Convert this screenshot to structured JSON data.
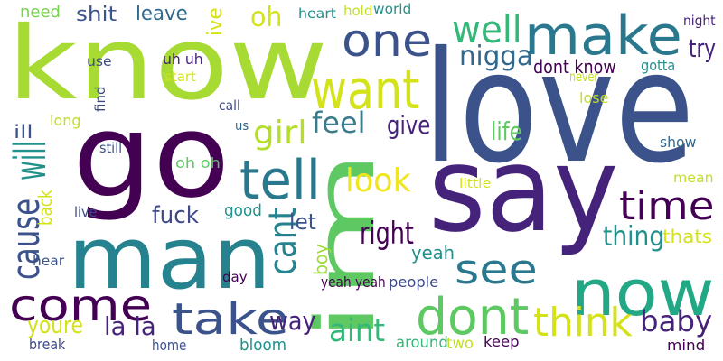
{
  "words": [
    {
      "text": "love",
      "color": "#3b528b"
    },
    {
      "text": "know",
      "color": "#a7db33"
    },
    {
      "text": "say",
      "color": "#46237a"
    },
    {
      "text": "go",
      "color": "#440154"
    },
    {
      "text": "im",
      "color": "#5ec962"
    },
    {
      "text": "man",
      "color": "#26828e"
    },
    {
      "text": "make",
      "color": "#2a788e"
    },
    {
      "text": "now",
      "color": "#22a884"
    },
    {
      "text": "one",
      "color": "#3b528b"
    },
    {
      "text": "want",
      "color": "#d4e21a"
    },
    {
      "text": "tell",
      "color": "#2a788e"
    },
    {
      "text": "dont",
      "color": "#5ec962"
    },
    {
      "text": "see",
      "color": "#2a788e"
    },
    {
      "text": "come",
      "color": "#440154"
    },
    {
      "text": "take",
      "color": "#3b528b"
    },
    {
      "text": "time",
      "color": "#440154"
    },
    {
      "text": "well",
      "color": "#35b779"
    },
    {
      "text": "think",
      "color": "#d4e21a"
    },
    {
      "text": "will",
      "color": "#21918c"
    },
    {
      "text": "cause",
      "color": "#3b528b"
    },
    {
      "text": "cant",
      "color": "#26828e"
    },
    {
      "text": "baby",
      "color": "#46237a"
    },
    {
      "text": "look",
      "color": "#f1e51d"
    },
    {
      "text": "aint",
      "color": "#35b779"
    },
    {
      "text": "girl",
      "color": "#b5de2b"
    },
    {
      "text": "feel",
      "color": "#3b7c8c"
    },
    {
      "text": "right",
      "color": "#440154"
    },
    {
      "text": "fuck",
      "color": "#3e4989"
    },
    {
      "text": "way",
      "color": "#46237a"
    },
    {
      "text": "thing",
      "color": "#21918c"
    },
    {
      "text": "nigga",
      "color": "#31688e"
    },
    {
      "text": "try",
      "color": "#46237a"
    },
    {
      "text": "give",
      "color": "#46237a"
    },
    {
      "text": "life",
      "color": "#5ec962"
    },
    {
      "text": "let",
      "color": "#3b528b"
    },
    {
      "text": "youre",
      "color": "#d4e21a"
    },
    {
      "text": "la la",
      "color": "#46237a"
    },
    {
      "text": "dont know",
      "color": "#440154"
    },
    {
      "text": "oh",
      "color": "#d4e21a"
    },
    {
      "text": "shit",
      "color": "#3b528b"
    },
    {
      "text": "leave",
      "color": "#31688e"
    },
    {
      "text": "need",
      "color": "#7ad151"
    },
    {
      "text": "ive",
      "color": "#d4e21a"
    },
    {
      "text": "back",
      "color": "#d4e21a"
    },
    {
      "text": "yeah",
      "color": "#21918c"
    },
    {
      "text": "thats",
      "color": "#d4e21a"
    },
    {
      "text": "ill",
      "color": "#3b528b"
    },
    {
      "text": "boy",
      "color": "#a0da39"
    },
    {
      "text": "good",
      "color": "#21918c"
    },
    {
      "text": "yeah yeah",
      "color": "#440154"
    },
    {
      "text": "people",
      "color": "#3e4989"
    },
    {
      "text": "mean",
      "color": "#c2df23"
    },
    {
      "text": "show",
      "color": "#31688e"
    },
    {
      "text": "heart",
      "color": "#21918c"
    },
    {
      "text": "hold",
      "color": "#c2df23"
    },
    {
      "text": "world",
      "color": "#21918c"
    },
    {
      "text": "night",
      "color": "#46237a"
    },
    {
      "text": "uh uh",
      "color": "#46237a"
    },
    {
      "text": "start",
      "color": "#d4e21a"
    },
    {
      "text": "use",
      "color": "#3e4989"
    },
    {
      "text": "find",
      "color": "#3e4989"
    },
    {
      "text": "call",
      "color": "#3e4989"
    },
    {
      "text": "us",
      "color": "#31688e"
    },
    {
      "text": "long",
      "color": "#c2df23"
    },
    {
      "text": "still",
      "color": "#3b528b"
    },
    {
      "text": "live",
      "color": "#3e4989"
    },
    {
      "text": "hear",
      "color": "#3b528b"
    },
    {
      "text": "day",
      "color": "#440154"
    },
    {
      "text": "oh oh",
      "color": "#5ec962"
    },
    {
      "text": "little",
      "color": "#d4e21a"
    },
    {
      "text": "never",
      "color": "#c2df23"
    },
    {
      "text": "lose",
      "color": "#c2df23"
    },
    {
      "text": "gotta",
      "color": "#21918c"
    },
    {
      "text": "break",
      "color": "#3e4989"
    },
    {
      "text": "home",
      "color": "#3b528b"
    },
    {
      "text": "bloom",
      "color": "#21918c"
    },
    {
      "text": "around",
      "color": "#35b779"
    },
    {
      "text": "two",
      "color": "#c2df23"
    },
    {
      "text": "keep",
      "color": "#440154"
    },
    {
      "text": "mind",
      "color": "#440154"
    }
  ]
}
